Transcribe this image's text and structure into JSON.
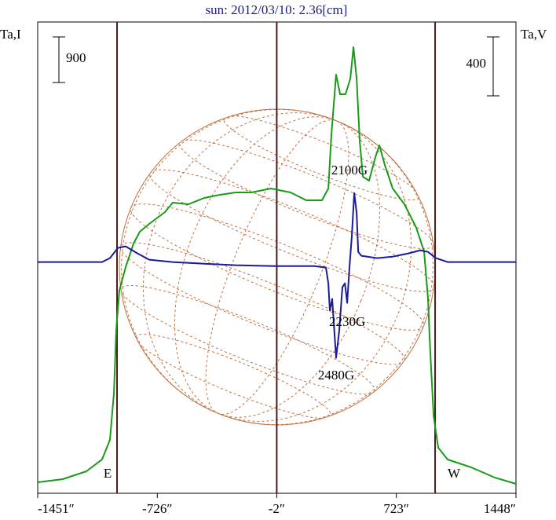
{
  "chart_data": {
    "type": "line",
    "title": "sun: 2012/03/10: 2.36[cm]",
    "ylabel": "Ta,I",
    "y2label": "Ta,V",
    "xlim": [
      -1451,
      1448
    ],
    "xticks": [
      {
        "value": -1451,
        "label": "-1451″"
      },
      {
        "value": -726,
        "label": "-726″"
      },
      {
        "value": -2,
        "label": "-2″"
      },
      {
        "value": 723,
        "label": "723″"
      },
      {
        "value": 1448,
        "label": "1448″"
      }
    ],
    "ylim": [
      0,
      9300
    ],
    "y2lim": [
      -1570,
      1630
    ],
    "scale_bars": [
      {
        "value": 900,
        "axis": "y"
      },
      {
        "value": 400,
        "axis": "y2"
      }
    ],
    "vlines": [
      -970,
      -2,
      958
    ],
    "series": [
      {
        "name": "I",
        "color": "#1a9a1a",
        "x": [
          -1451,
          -1299,
          -1156,
          -1061,
          -1013,
          -989,
          -975,
          -956,
          -918,
          -870,
          -832,
          -775,
          -680,
          -632,
          -537,
          -442,
          -346,
          -251,
          -156,
          -37,
          82,
          177,
          272,
          311,
          330,
          358,
          382,
          415,
          444,
          463,
          482,
          501,
          520,
          558,
          596,
          620,
          653,
          701,
          772,
          844,
          891,
          915,
          929,
          949,
          977,
          1034,
          1177,
          1320,
          1448
        ],
        "values": [
          217,
          279,
          434,
          667,
          1054,
          1984,
          3224,
          4000,
          4464,
          4929,
          5162,
          5317,
          5549,
          5735,
          5704,
          5828,
          5890,
          5937,
          5937,
          6014,
          5937,
          5782,
          5782,
          6014,
          7099,
          8262,
          7874,
          7874,
          8184,
          8804,
          8184,
          6944,
          6246,
          6169,
          6634,
          6867,
          6479,
          6014,
          5704,
          5239,
          4774,
          3844,
          2759,
          1519,
          899,
          667,
          512,
          310,
          186
        ]
      },
      {
        "name": "V",
        "color": "#1a1a9a",
        "axis": "y2",
        "x": [
          -1451,
          -1061,
          -1013,
          -965,
          -918,
          -846,
          -775,
          -632,
          -442,
          -251,
          -13,
          225,
          296,
          311,
          320,
          334,
          358,
          377,
          396,
          411,
          425,
          439,
          453,
          468,
          482,
          492,
          511,
          606,
          701,
          796,
          868,
          915,
          963,
          1034,
          1448
        ],
        "values": [
          0,
          0,
          27,
          96,
          107,
          59,
          16,
          0,
          -11,
          -21,
          -27,
          -27,
          -37,
          -144,
          -330,
          -250,
          -650,
          -464,
          -171,
          -144,
          -277,
          -37,
          176,
          469,
          336,
          69,
          43,
          27,
          37,
          59,
          80,
          69,
          27,
          0,
          0
        ]
      }
    ],
    "annotations": [
      {
        "text": "2100G",
        "x": 439,
        "y": 6355
      },
      {
        "text": "2230G",
        "x": 425,
        "y": 3364
      },
      {
        "text": "2480G",
        "x": 358,
        "y": 2310
      },
      {
        "text": "E",
        "x": -1027,
        "y": 372
      },
      {
        "text": "W",
        "x": 1072,
        "y": 372
      }
    ]
  }
}
